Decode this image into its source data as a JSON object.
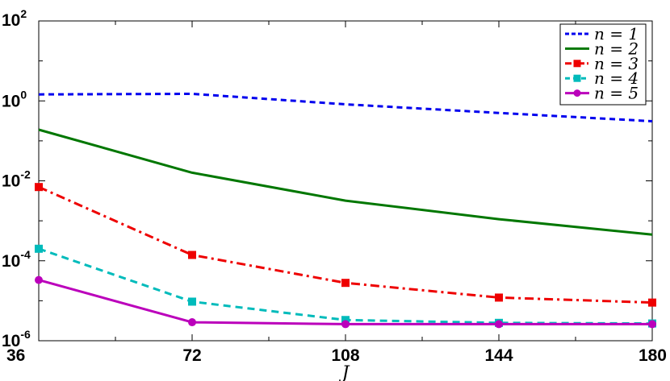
{
  "chart_data": {
    "type": "line",
    "x": [
      36,
      72,
      108,
      144,
      180
    ],
    "xlabel": "J",
    "ylabel": "",
    "xlim": [
      36,
      180
    ],
    "ylim": [
      1e-06,
      100
    ],
    "yscale": "log",
    "xticks": [
      36,
      72,
      108,
      144,
      180
    ],
    "x_tick_labels": [
      "36",
      "72",
      "108",
      "144",
      "180"
    ],
    "y_tick_labels": [
      {
        "base": "10",
        "exp": "2"
      },
      {
        "base": "10",
        "exp": "0"
      },
      {
        "base": "10",
        "exp": "-2"
      },
      {
        "base": "10",
        "exp": "-4"
      },
      {
        "base": "10",
        "exp": "-6"
      }
    ],
    "legend_position": "top-right",
    "grid": false,
    "series": [
      {
        "name": "n = 1",
        "values": [
          1.45,
          1.5,
          0.82,
          0.5,
          0.31
        ],
        "color": "#0000ee",
        "style": "dotted",
        "marker": "none"
      },
      {
        "name": "n = 2",
        "values": [
          0.19,
          0.016,
          0.0032,
          0.0011,
          0.00045
        ],
        "color": "#007700",
        "style": "solid",
        "marker": "none"
      },
      {
        "name": "n = 3",
        "values": [
          0.007,
          0.00014,
          2.8e-05,
          1.2e-05,
          9e-06
        ],
        "color": "#ee0000",
        "style": "dashdot",
        "marker": "square"
      },
      {
        "name": "n = 4",
        "values": [
          0.0002,
          9.5e-06,
          3.3e-06,
          2.8e-06,
          2.7e-06
        ],
        "color": "#00bbbb",
        "style": "dashed",
        "marker": "square"
      },
      {
        "name": "n = 5",
        "values": [
          3.3e-05,
          2.9e-06,
          2.6e-06,
          2.6e-06,
          2.6e-06
        ],
        "color": "#bb00bb",
        "style": "solid",
        "marker": "circle"
      }
    ]
  }
}
